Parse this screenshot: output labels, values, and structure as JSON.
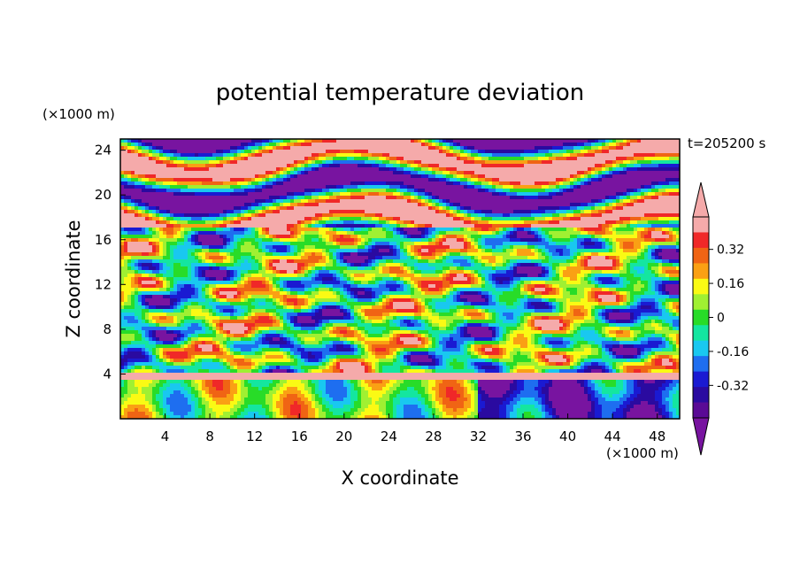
{
  "chart_data": {
    "type": "heatmap",
    "title": "potential temperature deviation",
    "time_label": "t=205200 s",
    "xlabel": "X coordinate",
    "ylabel": "Z coordinate",
    "x_unit": "(×1000 m)",
    "y_unit": "(×1000 m)",
    "xlim": [
      0,
      50
    ],
    "ylim": [
      0,
      25
    ],
    "x_ticks": [
      4,
      8,
      12,
      16,
      20,
      24,
      28,
      32,
      36,
      40,
      44,
      48
    ],
    "y_ticks": [
      4,
      8,
      12,
      16,
      20,
      24
    ],
    "colorbar": {
      "levels": [
        -0.4,
        -0.32,
        -0.24,
        -0.16,
        -0.08,
        0,
        0.08,
        0.16,
        0.24,
        0.32,
        0.4
      ],
      "labels": [
        "0.32",
        "0.16",
        "0",
        "-0.16",
        "-0.32"
      ],
      "label_values": [
        0.32,
        0.16,
        0,
        -0.16,
        -0.32
      ],
      "colors": [
        "#5a0a96",
        "#2a0aa0",
        "#1a1ad2",
        "#1e6ef0",
        "#19c8f0",
        "#14e6a0",
        "#28dc28",
        "#a0f032",
        "#fafa14",
        "#faa014",
        "#f06414",
        "#f02828",
        "#f5aaaa"
      ],
      "under_color": "#7814a0",
      "over_color": "#f5aaaa"
    }
  }
}
